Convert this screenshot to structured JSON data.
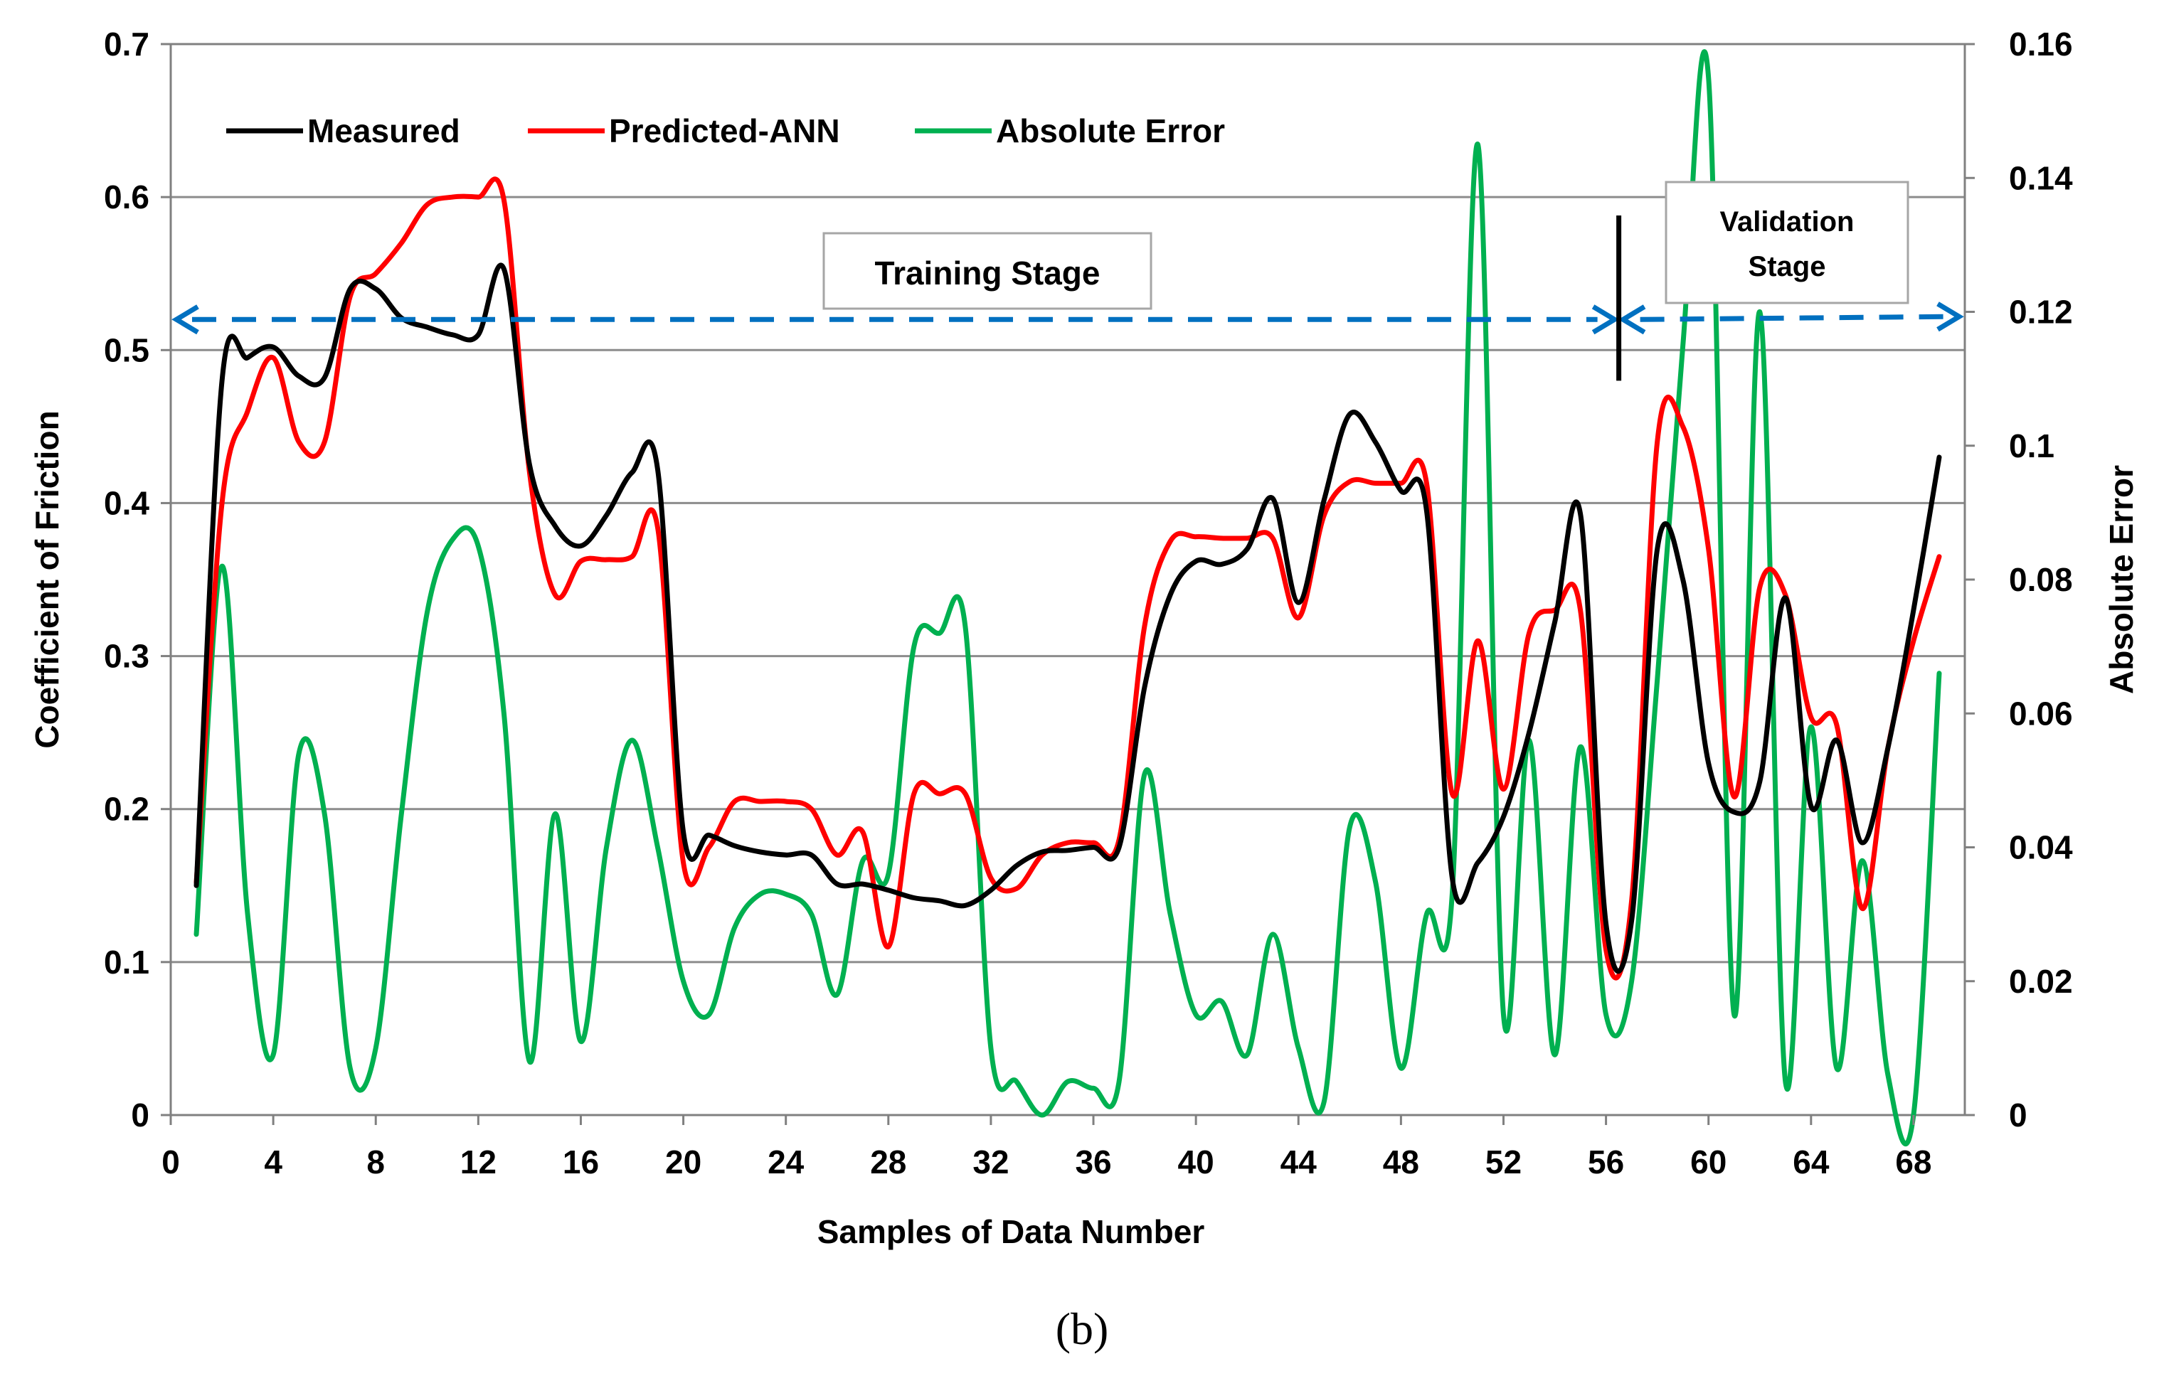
{
  "chart_data": {
    "type": "line",
    "caption": "(b)",
    "xlabel": "Samples of  Data Number",
    "ylabel_left": "Coefficient of Friction",
    "ylabel_right": "Absolute Error",
    "xlim": [
      0,
      70
    ],
    "ylim_left": [
      0,
      0.7
    ],
    "ylim_right": [
      0,
      0.16
    ],
    "x_ticks": [
      "0",
      "4",
      "8",
      "12",
      "16",
      "20",
      "24",
      "28",
      "32",
      "36",
      "40",
      "44",
      "48",
      "52",
      "56",
      "60",
      "64",
      "68"
    ],
    "y_left_ticks": [
      "0",
      "0.1",
      "0.2",
      "0.3",
      "0.4",
      "0.5",
      "0.6",
      "0.7"
    ],
    "y_right_ticks": [
      "0",
      "0.02",
      "0.04",
      "0.06",
      "0.08",
      "0.1",
      "0.12",
      "0.14",
      "0.16"
    ],
    "grid": true,
    "legend_position": "top-left",
    "annotations": {
      "training_label": "Training Stage",
      "validation_label_line1": "Validation",
      "validation_label_line2": "Stage",
      "stage_arrow_y": 0.52,
      "stage_split_x": 56.5
    },
    "series": [
      {
        "name": "Measured",
        "color": "#000000",
        "axis": "left",
        "x": [
          1,
          2,
          3,
          4,
          5,
          6,
          7,
          8,
          9,
          10,
          11,
          12,
          13,
          14,
          15,
          16,
          17,
          18,
          19,
          20,
          21,
          22,
          23,
          24,
          25,
          26,
          27,
          28,
          29,
          30,
          31,
          32,
          33,
          34,
          35,
          36,
          37,
          38,
          39,
          40,
          41,
          42,
          43,
          44,
          45,
          46,
          47,
          48,
          49,
          50,
          51,
          52,
          53,
          54,
          55,
          56,
          57,
          58,
          59,
          60,
          61,
          62,
          63,
          64,
          65,
          66,
          67,
          68,
          69
        ],
        "values": [
          0.15,
          0.48,
          0.495,
          0.502,
          0.483,
          0.482,
          0.54,
          0.54,
          0.521,
          0.515,
          0.51,
          0.51,
          0.553,
          0.425,
          0.385,
          0.372,
          0.392,
          0.42,
          0.422,
          0.185,
          0.183,
          0.176,
          0.172,
          0.17,
          0.17,
          0.151,
          0.151,
          0.147,
          0.142,
          0.14,
          0.137,
          0.147,
          0.163,
          0.172,
          0.173,
          0.175,
          0.175,
          0.28,
          0.34,
          0.362,
          0.36,
          0.37,
          0.403,
          0.335,
          0.402,
          0.458,
          0.44,
          0.408,
          0.395,
          0.155,
          0.165,
          0.195,
          0.25,
          0.322,
          0.393,
          0.125,
          0.127,
          0.37,
          0.35,
          0.23,
          0.198,
          0.218,
          0.338,
          0.202,
          0.245,
          0.178,
          0.24,
          0.33,
          0.43
        ]
      },
      {
        "name": "Predicted-ANN",
        "color": "#ff0000",
        "axis": "left",
        "x": [
          1,
          2,
          3,
          4,
          5,
          6,
          7,
          8,
          9,
          10,
          11,
          12,
          13,
          14,
          15,
          16,
          17,
          18,
          19,
          20,
          21,
          22,
          23,
          24,
          25,
          26,
          27,
          28,
          29,
          30,
          31,
          32,
          33,
          34,
          35,
          36,
          37,
          38,
          39,
          40,
          41,
          42,
          43,
          44,
          45,
          46,
          47,
          48,
          49,
          50,
          51,
          52,
          53,
          54,
          55,
          56,
          57,
          58,
          59,
          60,
          61,
          62,
          63,
          64,
          65,
          66,
          67,
          68,
          69
        ],
        "values": [
          0.152,
          0.4,
          0.46,
          0.495,
          0.44,
          0.44,
          0.535,
          0.55,
          0.57,
          0.595,
          0.6,
          0.6,
          0.598,
          0.42,
          0.34,
          0.362,
          0.363,
          0.365,
          0.384,
          0.165,
          0.175,
          0.205,
          0.205,
          0.205,
          0.2,
          0.17,
          0.185,
          0.11,
          0.21,
          0.21,
          0.21,
          0.155,
          0.148,
          0.17,
          0.178,
          0.178,
          0.18,
          0.32,
          0.375,
          0.378,
          0.377,
          0.377,
          0.377,
          0.325,
          0.392,
          0.414,
          0.413,
          0.413,
          0.413,
          0.21,
          0.31,
          0.213,
          0.315,
          0.33,
          0.33,
          0.108,
          0.14,
          0.44,
          0.45,
          0.37,
          0.208,
          0.345,
          0.34,
          0.26,
          0.255,
          0.135,
          0.24,
          0.31,
          0.365
        ]
      },
      {
        "name": "Absolute Error",
        "color": "#00b050",
        "axis": "right",
        "x": [
          1,
          2,
          3,
          4,
          5,
          6,
          7,
          8,
          9,
          10,
          11,
          12,
          13,
          14,
          15,
          16,
          17,
          18,
          19,
          20,
          21,
          22,
          23,
          24,
          25,
          26,
          27,
          28,
          29,
          30,
          31,
          32,
          33,
          34,
          35,
          36,
          37,
          38,
          39,
          40,
          41,
          42,
          43,
          44,
          45,
          46,
          47,
          48,
          49,
          50,
          51,
          52,
          53,
          54,
          55,
          56,
          57,
          58,
          59,
          60,
          61,
          62,
          63,
          64,
          65,
          66,
          67,
          68,
          69
        ],
        "values": [
          0.027,
          0.082,
          0.03,
          0.009,
          0.054,
          0.045,
          0.007,
          0.01,
          0.045,
          0.075,
          0.086,
          0.085,
          0.06,
          0.008,
          0.045,
          0.011,
          0.04,
          0.056,
          0.04,
          0.02,
          0.015,
          0.028,
          0.033,
          0.033,
          0.03,
          0.018,
          0.038,
          0.036,
          0.07,
          0.072,
          0.073,
          0.01,
          0.005,
          0.0,
          0.005,
          0.004,
          0.005,
          0.051,
          0.03,
          0.015,
          0.017,
          0.009,
          0.027,
          0.01,
          0.002,
          0.043,
          0.035,
          0.007,
          0.03,
          0.033,
          0.145,
          0.015,
          0.056,
          0.009,
          0.055,
          0.015,
          0.02,
          0.065,
          0.115,
          0.155,
          0.015,
          0.12,
          0.005,
          0.058,
          0.007,
          0.038,
          0.006,
          0.0,
          0.066
        ]
      }
    ]
  }
}
